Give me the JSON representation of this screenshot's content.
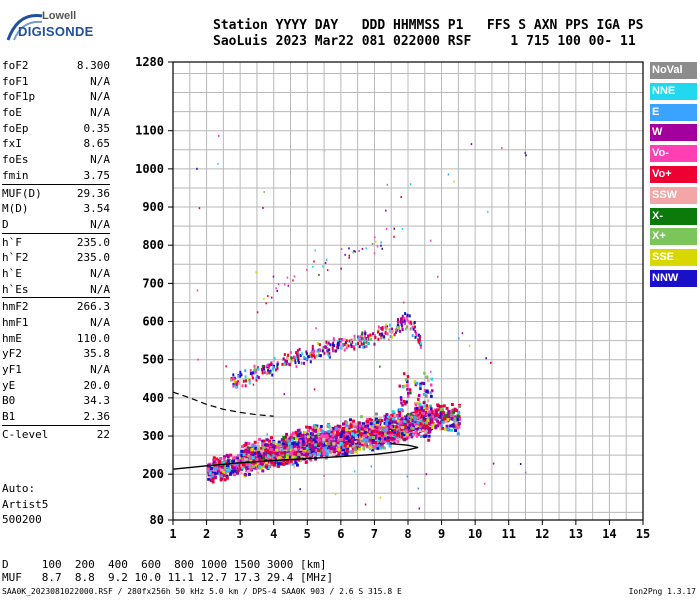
{
  "logo": {
    "line1": "Lowell",
    "line2": "DIGISONDE"
  },
  "header": {
    "row1": "Station YYYY DAY   DDD HHMMSS P1   FFS S AXN PPS IGA PS",
    "row2": "SaoLuis 2023 Mar22 081 022000 RSF     1 715 100 00- 11"
  },
  "params_groups": [
    [
      [
        "foF2",
        "8.300"
      ],
      [
        "foF1",
        "N/A"
      ],
      [
        "foF1p",
        "N/A"
      ],
      [
        "foE",
        "N/A"
      ],
      [
        "foEp",
        "0.35"
      ],
      [
        "fxI",
        "8.65"
      ],
      [
        "foEs",
        "N/A"
      ],
      [
        "fmin",
        "3.75"
      ]
    ],
    [
      [
        "MUF(D)",
        "29.36"
      ],
      [
        "M(D)",
        "3.54"
      ],
      [
        "D",
        "N/A"
      ]
    ],
    [
      [
        "h`F",
        "235.0"
      ],
      [
        "h`F2",
        "235.0"
      ],
      [
        "h`E",
        "N/A"
      ],
      [
        "h`Es",
        "N/A"
      ]
    ],
    [
      [
        "hmF2",
        "266.3"
      ],
      [
        "hmF1",
        "N/A"
      ],
      [
        "hmE",
        "110.0"
      ],
      [
        "yF2",
        "35.8"
      ],
      [
        "yF1",
        "N/A"
      ],
      [
        "yE",
        "20.0"
      ],
      [
        "B0",
        "34.3"
      ],
      [
        "B1",
        "2.36"
      ]
    ],
    [
      [
        "C-level",
        "22"
      ]
    ]
  ],
  "auto": {
    "label": "Auto:",
    "artist": "Artist5",
    "code": "500200"
  },
  "legend": [
    {
      "name": "NoVal",
      "color": "#8c8c8c"
    },
    {
      "name": "NNE",
      "color": "#22d8ee"
    },
    {
      "name": "E",
      "color": "#3aa3ff"
    },
    {
      "name": "W",
      "color": "#a3009e"
    },
    {
      "name": "Vo-",
      "color": "#ff3fb3"
    },
    {
      "name": "Vo+",
      "color": "#ee0033"
    },
    {
      "name": "SSW",
      "color": "#f3a6a6"
    },
    {
      "name": "X-",
      "color": "#0b7a0b"
    },
    {
      "name": "X+",
      "color": "#7bc55a"
    },
    {
      "name": "SSE",
      "color": "#d8d800"
    },
    {
      "name": "NNW",
      "color": "#1a10c8"
    }
  ],
  "footer": {
    "row1": "D     100  200  400  600  800 1000 1500 3000 [km]",
    "row2": "MUF   8.7  8.8  9.2 10.0 11.1 12.7 17.3 29.4 [MHz]",
    "file": "SAA0K_2023081022000.RSF / 280fx256h 50 kHz 5.0 km / DPS-4 SAA0K 903 / 2.6 S 315.8 E",
    "version": "Ion2Png 1.3.17"
  },
  "chart_data": {
    "type": "scatter",
    "xlim": [
      1,
      15
    ],
    "ylim": [
      80,
      1280
    ],
    "xticks": [
      1,
      2,
      3,
      4,
      5,
      6,
      7,
      8,
      9,
      10,
      11,
      12,
      13,
      14,
      15
    ],
    "yticks": [
      80,
      200,
      300,
      400,
      500,
      600,
      700,
      800,
      900,
      1000,
      1100,
      1280
    ],
    "grid": true,
    "legend_position": "right",
    "profile_solid": [
      [
        1.0,
        213
      ],
      [
        2.0,
        222
      ],
      [
        3.0,
        230
      ],
      [
        4.0,
        236
      ],
      [
        5.0,
        241
      ],
      [
        6.0,
        246
      ],
      [
        7.0,
        252
      ],
      [
        7.6,
        258
      ],
      [
        8.0,
        264
      ],
      [
        8.3,
        270
      ],
      [
        8.0,
        276
      ],
      [
        7.5,
        280
      ]
    ],
    "profile_dashed": [
      [
        1.0,
        415
      ],
      [
        1.5,
        400
      ],
      [
        2.0,
        383
      ],
      [
        2.5,
        370
      ],
      [
        3.0,
        362
      ],
      [
        3.5,
        356
      ],
      [
        4.0,
        352
      ]
    ],
    "o_trace": [
      [
        2.0,
        215
      ],
      [
        3.0,
        230
      ],
      [
        4.0,
        250
      ],
      [
        5.0,
        268
      ],
      [
        6.0,
        285
      ],
      [
        7.0,
        300
      ],
      [
        7.5,
        310
      ],
      [
        8.0,
        330
      ],
      [
        8.3,
        360
      ],
      [
        8.6,
        320
      ]
    ],
    "x_trace": [
      [
        3.0,
        248
      ],
      [
        4.0,
        268
      ],
      [
        5.0,
        290
      ],
      [
        6.0,
        310
      ],
      [
        7.0,
        325
      ],
      [
        8.0,
        340
      ],
      [
        9.0,
        355
      ],
      [
        9.5,
        345
      ]
    ],
    "multihop": [
      [
        2.7,
        440
      ],
      [
        3.5,
        470
      ],
      [
        4.5,
        505
      ],
      [
        5.5,
        530
      ],
      [
        6.5,
        555
      ],
      [
        7.5,
        580
      ],
      [
        8.0,
        610
      ],
      [
        8.4,
        540
      ]
    ],
    "multihop3": [
      [
        3.5,
        650
      ],
      [
        4.5,
        710
      ],
      [
        5.5,
        760
      ],
      [
        6.5,
        790
      ],
      [
        7.5,
        830
      ],
      [
        8.0,
        870
      ]
    ]
  }
}
